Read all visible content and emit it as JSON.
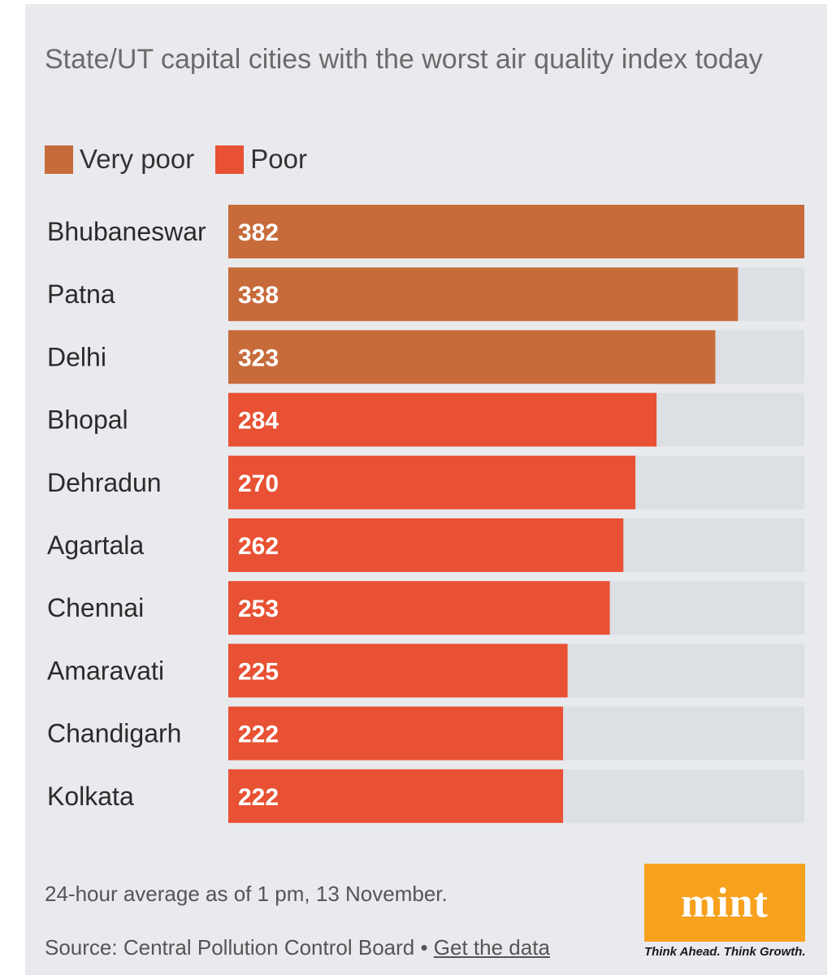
{
  "chart_data": {
    "type": "bar",
    "orientation": "horizontal",
    "title": "State/UT capital cities with the worst air quality index today",
    "legend": [
      {
        "label": "Very poor",
        "color": "#c76b3b"
      },
      {
        "label": "Poor",
        "color": "#e85133"
      }
    ],
    "categories": [
      "Bhubaneswar",
      "Patna",
      "Delhi",
      "Bhopal",
      "Dehradun",
      "Agartala",
      "Chennai",
      "Amaravati",
      "Chandigarh",
      "Kolkata"
    ],
    "values": [
      382,
      338,
      323,
      284,
      270,
      262,
      253,
      225,
      222,
      222
    ],
    "category_class": [
      "Very poor",
      "Very poor",
      "Very poor",
      "Poor",
      "Poor",
      "Poor",
      "Poor",
      "Poor",
      "Poor",
      "Poor"
    ],
    "xlim": [
      0,
      382
    ],
    "track_color": "#dcdfe4",
    "label_color": "#ffffff"
  },
  "footer": {
    "note": "24-hour average as of 1 pm, 13 November.",
    "source_prefix": "Source: Central Pollution Control Board • ",
    "source_link": "Get the data"
  },
  "logo": {
    "word": "mint",
    "tagline": "Think Ahead. Think Growth.",
    "color": "#f8a11d"
  }
}
